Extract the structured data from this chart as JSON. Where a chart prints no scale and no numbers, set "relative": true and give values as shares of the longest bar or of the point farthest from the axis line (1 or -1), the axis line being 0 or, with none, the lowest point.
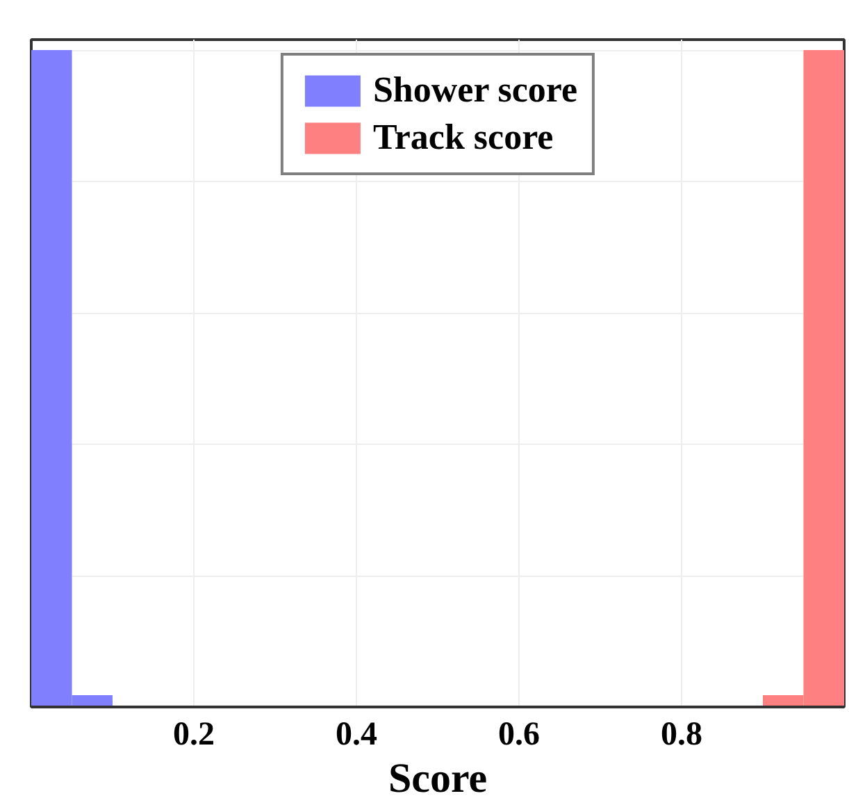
{
  "chart_data": {
    "type": "bar",
    "xlabel": "Score",
    "series": [
      {
        "name": "Shower score",
        "color": "#8080ff",
        "x": [
          0.025,
          0.075
        ],
        "values": [
          1,
          0.018
        ]
      },
      {
        "name": "Track score",
        "color": "#ff8080",
        "x": [
          0.925,
          0.975
        ],
        "values": [
          0.018,
          1
        ]
      }
    ],
    "relative": true,
    "xlim": [
      0,
      1.0
    ],
    "xticks": [
      0.2,
      0.4,
      0.6,
      0.8
    ],
    "grid": true,
    "legend": "top"
  }
}
